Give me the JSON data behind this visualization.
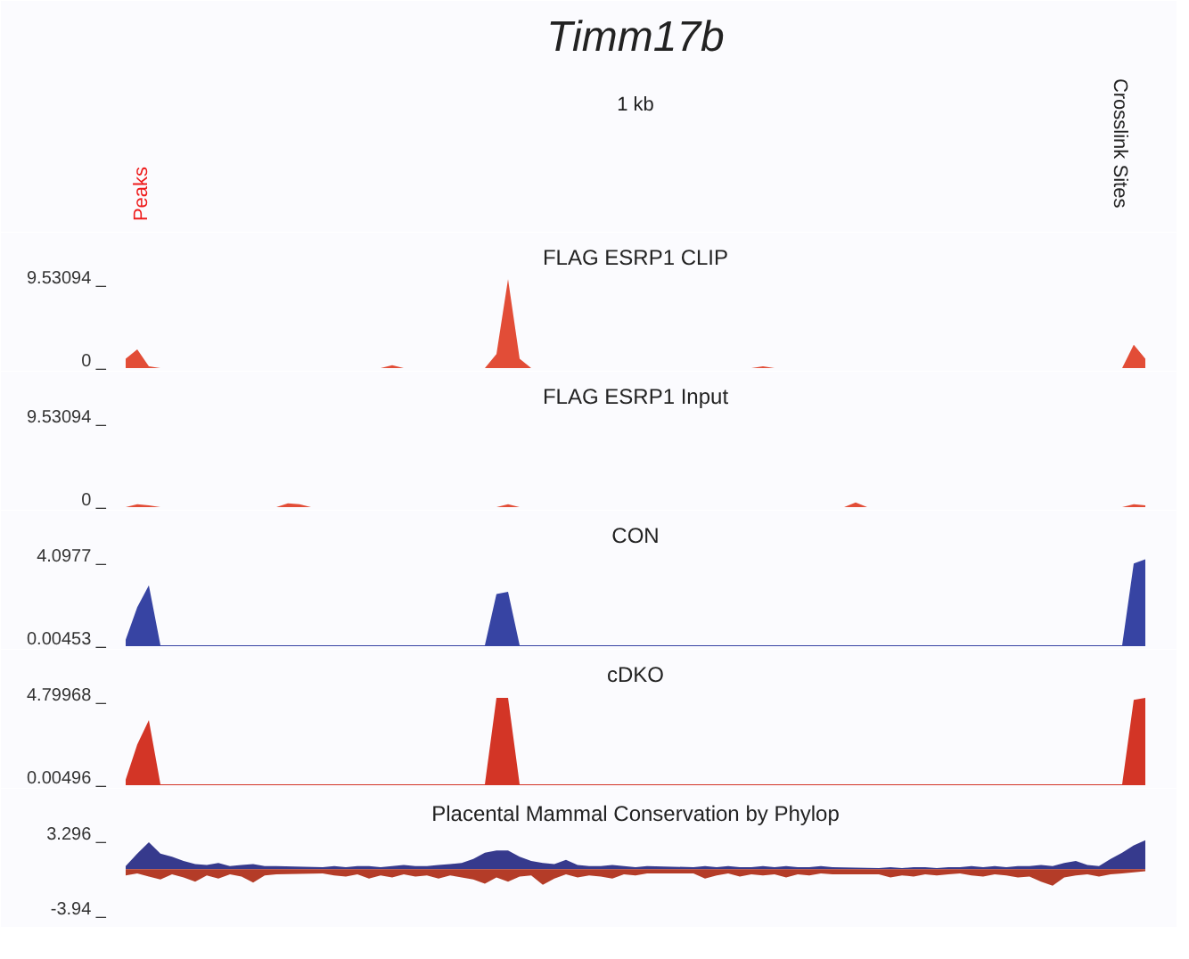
{
  "chart_data": [
    {
      "type": "other",
      "title": "Timm17b",
      "annotations": [
        "1 kb",
        "Peaks",
        "Crosslink Sites"
      ]
    },
    {
      "type": "area",
      "title": "FLAG ESRP1 CLIP",
      "ylim": [
        0,
        9.53094
      ],
      "yticks": [
        {
          "value": 0,
          "label": "0 _"
        },
        {
          "value": 9.53094,
          "label": "9.53094 _"
        }
      ],
      "tick_labels": "y",
      "categories": [
        null,
        null,
        null,
        null,
        null,
        null,
        null,
        null,
        null,
        null,
        null,
        null,
        null,
        null,
        null,
        null,
        null,
        null,
        null,
        null,
        null,
        null,
        null,
        null,
        null,
        null,
        null,
        null,
        null,
        null,
        null,
        null,
        null,
        null,
        null,
        null,
        null,
        null,
        null,
        null,
        null,
        null,
        null,
        null,
        null,
        null,
        null,
        null,
        null,
        null,
        null,
        null,
        null,
        null,
        null,
        null,
        null,
        null,
        null,
        null,
        null,
        null,
        null,
        null,
        null,
        null,
        null,
        null,
        null,
        null,
        null,
        null,
        null,
        null,
        null,
        null,
        null,
        null,
        null,
        null,
        null,
        null,
        null,
        null,
        null,
        null,
        null,
        null,
        null
      ],
      "series": [
        {
          "color": "#e0432c",
          "values": [
            1.0,
            2.0,
            0.2,
            0,
            0,
            0,
            0,
            0,
            0,
            0,
            0,
            0,
            0,
            0,
            0,
            0,
            0,
            0,
            0,
            0,
            0,
            0,
            0,
            0.3,
            0,
            0,
            0,
            0,
            0,
            0,
            0,
            0,
            1.5,
            9.5,
            1.0,
            0,
            0,
            0,
            0,
            0,
            0,
            0,
            0,
            0,
            0,
            0,
            0,
            0,
            0,
            0,
            0,
            0,
            0,
            0,
            0,
            0.2,
            0,
            0,
            0,
            0,
            0,
            0,
            0,
            0,
            0,
            0,
            0,
            0,
            0,
            0,
            0,
            0,
            0,
            0,
            0,
            0,
            0,
            0,
            0,
            0,
            0,
            0,
            0,
            0,
            0,
            0,
            0,
            2.5,
            1.0
          ]
        }
      ]
    },
    {
      "type": "area",
      "title": "FLAG ESRP1 Input",
      "ylim": [
        0,
        9.53094
      ],
      "yticks": [
        {
          "value": 0,
          "label": "0 _"
        },
        {
          "value": 9.53094,
          "label": "9.53094 _"
        }
      ],
      "tick_labels": "y",
      "categories": [
        null,
        null,
        null,
        null,
        null,
        null,
        null,
        null,
        null,
        null,
        null,
        null,
        null,
        null,
        null,
        null,
        null,
        null,
        null,
        null,
        null,
        null,
        null,
        null,
        null,
        null,
        null,
        null,
        null,
        null,
        null,
        null,
        null,
        null,
        null,
        null,
        null,
        null,
        null,
        null,
        null,
        null,
        null,
        null,
        null,
        null,
        null,
        null,
        null,
        null,
        null,
        null,
        null,
        null,
        null,
        null,
        null,
        null,
        null,
        null,
        null,
        null,
        null,
        null,
        null,
        null,
        null,
        null,
        null,
        null,
        null,
        null,
        null,
        null,
        null,
        null,
        null,
        null,
        null,
        null,
        null,
        null,
        null,
        null,
        null,
        null,
        null,
        null,
        null
      ],
      "series": [
        {
          "color": "#e0432c",
          "values": [
            0,
            0.3,
            0.2,
            0,
            0,
            0,
            0,
            0,
            0,
            0,
            0,
            0,
            0,
            0,
            0.4,
            0.3,
            0,
            0,
            0,
            0,
            0,
            0,
            0,
            0,
            0,
            0,
            0,
            0,
            0,
            0,
            0,
            0,
            0,
            0.3,
            0,
            0,
            0,
            0,
            0,
            0,
            0,
            0,
            0,
            0,
            0,
            0,
            0,
            0,
            0,
            0,
            0,
            0,
            0,
            0,
            0,
            0,
            0,
            0,
            0,
            0,
            0,
            0,
            0,
            0.5,
            0,
            0,
            0,
            0,
            0,
            0,
            0,
            0,
            0,
            0,
            0,
            0,
            0,
            0,
            0,
            0,
            0,
            0,
            0,
            0,
            0,
            0,
            0,
            0.3,
            0.2
          ]
        }
      ]
    },
    {
      "type": "area",
      "title": "CON",
      "ylim": [
        0.00453,
        4.0977
      ],
      "yticks": [
        {
          "value": 0.00453,
          "label": "0.00453 _"
        },
        {
          "value": 4.0977,
          "label": "4.0977 _"
        }
      ],
      "tick_labels": "y",
      "categories": [
        null,
        null,
        null,
        null,
        null,
        null,
        null,
        null,
        null,
        null,
        null,
        null,
        null,
        null,
        null,
        null,
        null,
        null,
        null,
        null,
        null,
        null,
        null,
        null,
        null,
        null,
        null,
        null,
        null,
        null,
        null,
        null,
        null,
        null,
        null,
        null,
        null,
        null,
        null,
        null,
        null,
        null,
        null,
        null,
        null,
        null,
        null,
        null,
        null,
        null,
        null,
        null,
        null,
        null,
        null,
        null,
        null,
        null,
        null,
        null,
        null,
        null,
        null,
        null,
        null,
        null,
        null,
        null,
        null,
        null,
        null,
        null,
        null,
        null,
        null,
        null,
        null,
        null,
        null,
        null,
        null,
        null,
        null,
        null,
        null,
        null,
        null,
        null,
        null
      ],
      "series": [
        {
          "color": "#2c3a9e",
          "values": [
            0.3,
            1.8,
            2.8,
            0.05,
            0.05,
            0.05,
            0.05,
            0.05,
            0.05,
            0.05,
            0.05,
            0.05,
            0.05,
            0.05,
            0.05,
            0.05,
            0.05,
            0.05,
            0.05,
            0.05,
            0.05,
            0.05,
            0.05,
            0.05,
            0.05,
            0.05,
            0.05,
            0.05,
            0.05,
            0.05,
            0.05,
            0.05,
            2.4,
            2.5,
            0.05,
            0.05,
            0.05,
            0.05,
            0.05,
            0.05,
            0.05,
            0.05,
            0.05,
            0.05,
            0.05,
            0.05,
            0.05,
            0.05,
            0.05,
            0.05,
            0.05,
            0.05,
            0.05,
            0.05,
            0.05,
            0.05,
            0.05,
            0.05,
            0.05,
            0.05,
            0.05,
            0.05,
            0.05,
            0.05,
            0.05,
            0.05,
            0.05,
            0.05,
            0.05,
            0.05,
            0.05,
            0.05,
            0.05,
            0.05,
            0.05,
            0.05,
            0.05,
            0.05,
            0.05,
            0.05,
            0.05,
            0.05,
            0.05,
            0.05,
            0.05,
            0.05,
            0.05,
            3.8,
            4.0
          ]
        }
      ]
    },
    {
      "type": "area",
      "title": "cDKO",
      "ylim": [
        0.00496,
        4.79968
      ],
      "yticks": [
        {
          "value": 0.00496,
          "label": "0.00496 _"
        },
        {
          "value": 4.79968,
          "label": "4.79968 _"
        }
      ],
      "tick_labels": "y",
      "categories": [
        null,
        null,
        null,
        null,
        null,
        null,
        null,
        null,
        null,
        null,
        null,
        null,
        null,
        null,
        null,
        null,
        null,
        null,
        null,
        null,
        null,
        null,
        null,
        null,
        null,
        null,
        null,
        null,
        null,
        null,
        null,
        null,
        null,
        null,
        null,
        null,
        null,
        null,
        null,
        null,
        null,
        null,
        null,
        null,
        null,
        null,
        null,
        null,
        null,
        null,
        null,
        null,
        null,
        null,
        null,
        null,
        null,
        null,
        null,
        null,
        null,
        null,
        null,
        null,
        null,
        null,
        null,
        null,
        null,
        null,
        null,
        null,
        null,
        null,
        null,
        null,
        null,
        null,
        null,
        null,
        null,
        null,
        null,
        null,
        null,
        null,
        null,
        null,
        null
      ],
      "series": [
        {
          "color": "#d12a1a",
          "values": [
            0.3,
            2.2,
            3.5,
            0.05,
            0.05,
            0.05,
            0.05,
            0.05,
            0.05,
            0.05,
            0.05,
            0.05,
            0.05,
            0.05,
            0.05,
            0.05,
            0.05,
            0.05,
            0.05,
            0.05,
            0.05,
            0.05,
            0.05,
            0.05,
            0.05,
            0.05,
            0.05,
            0.05,
            0.05,
            0.05,
            0.05,
            0.05,
            4.7,
            4.7,
            0.05,
            0.05,
            0.05,
            0.05,
            0.05,
            0.05,
            0.05,
            0.05,
            0.05,
            0.05,
            0.05,
            0.05,
            0.05,
            0.05,
            0.05,
            0.05,
            0.05,
            0.05,
            0.05,
            0.05,
            0.05,
            0.05,
            0.05,
            0.05,
            0.05,
            0.05,
            0.05,
            0.05,
            0.05,
            0.05,
            0.05,
            0.05,
            0.05,
            0.05,
            0.05,
            0.05,
            0.05,
            0.05,
            0.05,
            0.05,
            0.05,
            0.05,
            0.05,
            0.05,
            0.05,
            0.05,
            0.05,
            0.05,
            0.05,
            0.05,
            0.05,
            0.05,
            0.05,
            4.6,
            4.7
          ]
        }
      ]
    },
    {
      "type": "area",
      "title": "Placental Mammal Conservation by Phylop",
      "ylim": [
        -3.94,
        3.296
      ],
      "yticks": [
        {
          "value": -3.94,
          "label": "-3.94 _"
        },
        {
          "value": 3.296,
          "label": "3.296 _"
        }
      ],
      "tick_labels": "y",
      "categories": [
        null,
        null,
        null,
        null,
        null,
        null,
        null,
        null,
        null,
        null,
        null,
        null,
        null,
        null,
        null,
        null,
        null,
        null,
        null,
        null,
        null,
        null,
        null,
        null,
        null,
        null,
        null,
        null,
        null,
        null,
        null,
        null,
        null,
        null,
        null,
        null,
        null,
        null,
        null,
        null,
        null,
        null,
        null,
        null,
        null,
        null,
        null,
        null,
        null,
        null,
        null,
        null,
        null,
        null,
        null,
        null,
        null,
        null,
        null,
        null,
        null,
        null,
        null,
        null,
        null,
        null,
        null,
        null,
        null,
        null,
        null,
        null,
        null,
        null,
        null,
        null,
        null,
        null,
        null,
        null,
        null,
        null,
        null,
        null,
        null,
        null,
        null,
        null,
        null
      ],
      "series": [
        {
          "color": "#2b2f87",
          "values": [
            0.3,
            1.5,
            2.6,
            1.5,
            1.2,
            0.8,
            0.5,
            0.4,
            0.6,
            0.3,
            0.4,
            0.5,
            0.3,
            0.3,
            null,
            null,
            null,
            0.2,
            0.3,
            0.2,
            0.3,
            0.3,
            0.2,
            0.3,
            0.4,
            0.3,
            0.3,
            0.4,
            0.5,
            0.6,
            1.0,
            1.6,
            1.8,
            1.8,
            1.2,
            0.8,
            0.6,
            0.5,
            0.9,
            0.4,
            0.3,
            0.3,
            0.4,
            0.3,
            0.2,
            0.3,
            null,
            null,
            null,
            0.2,
            0.3,
            0.2,
            0.3,
            0.2,
            0.2,
            0.3,
            0.2,
            0.3,
            0.2,
            0.2,
            0.3,
            0.2,
            null,
            null,
            null,
            0.1,
            0.2,
            0.1,
            0.2,
            0.2,
            0.1,
            0.2,
            0.2,
            0.3,
            0.2,
            0.3,
            0.2,
            0.3,
            0.3,
            0.4,
            0.3,
            0.6,
            0.8,
            0.4,
            0.3,
            1.0,
            1.6,
            2.3,
            2.8
          ]
        },
        {
          "color": "#b0321c",
          "values": [
            -0.6,
            -0.4,
            -0.7,
            -1.0,
            -0.5,
            -0.8,
            -1.2,
            -0.6,
            -0.9,
            -0.5,
            -0.7,
            -1.3,
            -0.6,
            -0.5,
            null,
            null,
            null,
            -0.4,
            -0.6,
            -0.7,
            -0.5,
            -0.9,
            -0.6,
            -0.8,
            -0.5,
            -0.7,
            -0.6,
            -0.9,
            -0.6,
            -0.8,
            -1.0,
            -1.4,
            -0.8,
            -1.2,
            -0.7,
            -0.6,
            -1.5,
            -0.9,
            -0.5,
            -0.8,
            -0.6,
            -0.7,
            -0.9,
            -0.5,
            -0.6,
            -0.4,
            null,
            null,
            null,
            -0.4,
            -0.9,
            -0.6,
            -0.4,
            -0.7,
            -0.5,
            -0.6,
            -0.5,
            -0.8,
            -0.5,
            -0.6,
            -0.4,
            -0.5,
            null,
            null,
            null,
            -0.5,
            -0.8,
            -0.6,
            -0.7,
            -0.5,
            -0.6,
            -0.5,
            -0.4,
            -0.6,
            -0.7,
            -0.5,
            -0.6,
            -0.8,
            -0.7,
            -1.2,
            -1.6,
            -0.8,
            -0.6,
            -0.5,
            -0.7,
            -0.5,
            -0.4,
            -0.3,
            -0.2
          ]
        }
      ]
    }
  ]
}
